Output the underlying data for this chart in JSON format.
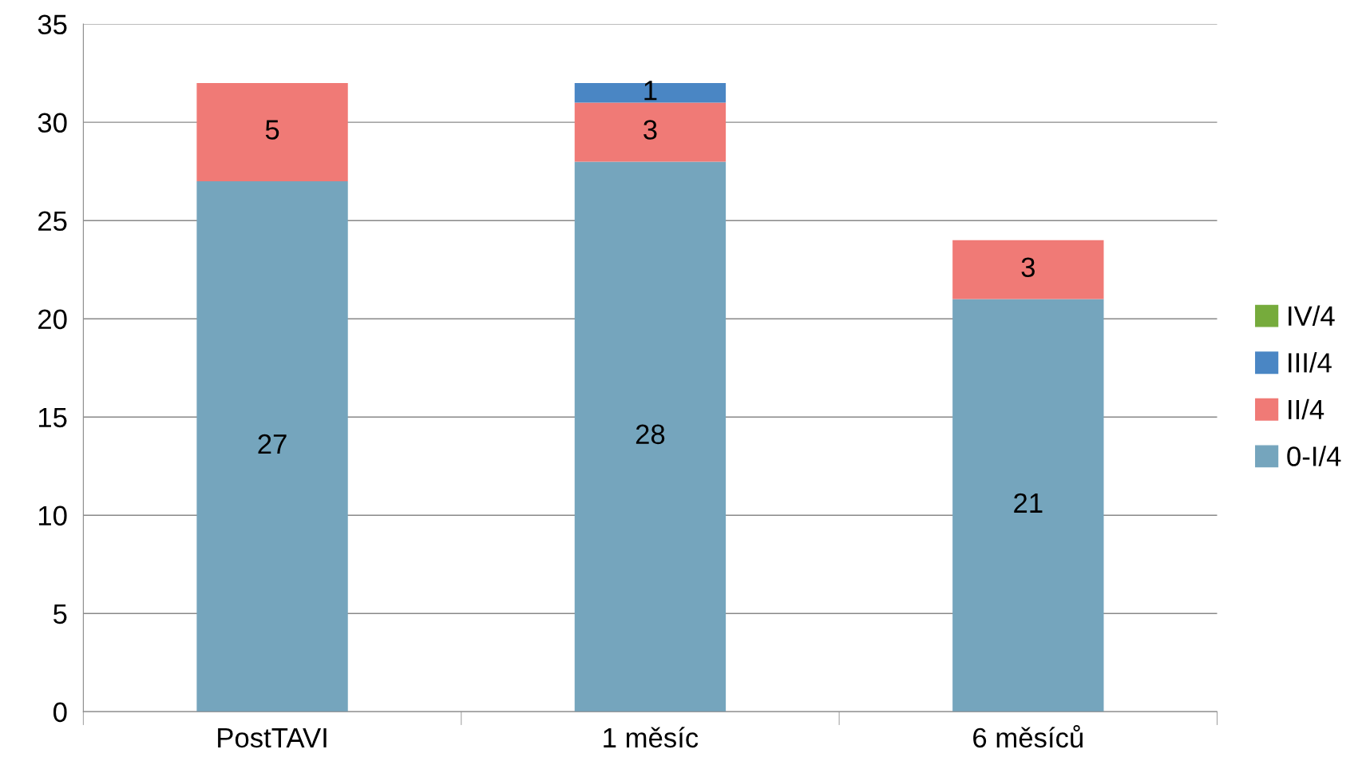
{
  "chart_data": {
    "type": "bar",
    "stacked": true,
    "categories": [
      "PostTAVI",
      "1 měsíc",
      "6 měsíců"
    ],
    "series": [
      {
        "name": "0-I/4",
        "color": "#75a5bd",
        "values": [
          27,
          28,
          21
        ],
        "value_labels": [
          "27",
          "28",
          "21"
        ]
      },
      {
        "name": "II/4",
        "color": "#f07a76",
        "values": [
          5,
          3,
          3
        ],
        "value_labels": [
          "5",
          "3",
          "3"
        ]
      },
      {
        "name": "III/4",
        "color": "#4a86c4",
        "values": [
          0,
          1,
          0
        ],
        "value_labels": [
          null,
          "1",
          null
        ]
      },
      {
        "name": "IV/4",
        "color": "#76ab3c",
        "values": [
          0,
          0,
          0
        ],
        "value_labels": [
          null,
          null,
          null
        ]
      }
    ],
    "ylim": [
      0,
      35
    ],
    "yticks": [
      0,
      5,
      10,
      15,
      20,
      25,
      30,
      35
    ],
    "grid": "y",
    "legend": "right"
  }
}
